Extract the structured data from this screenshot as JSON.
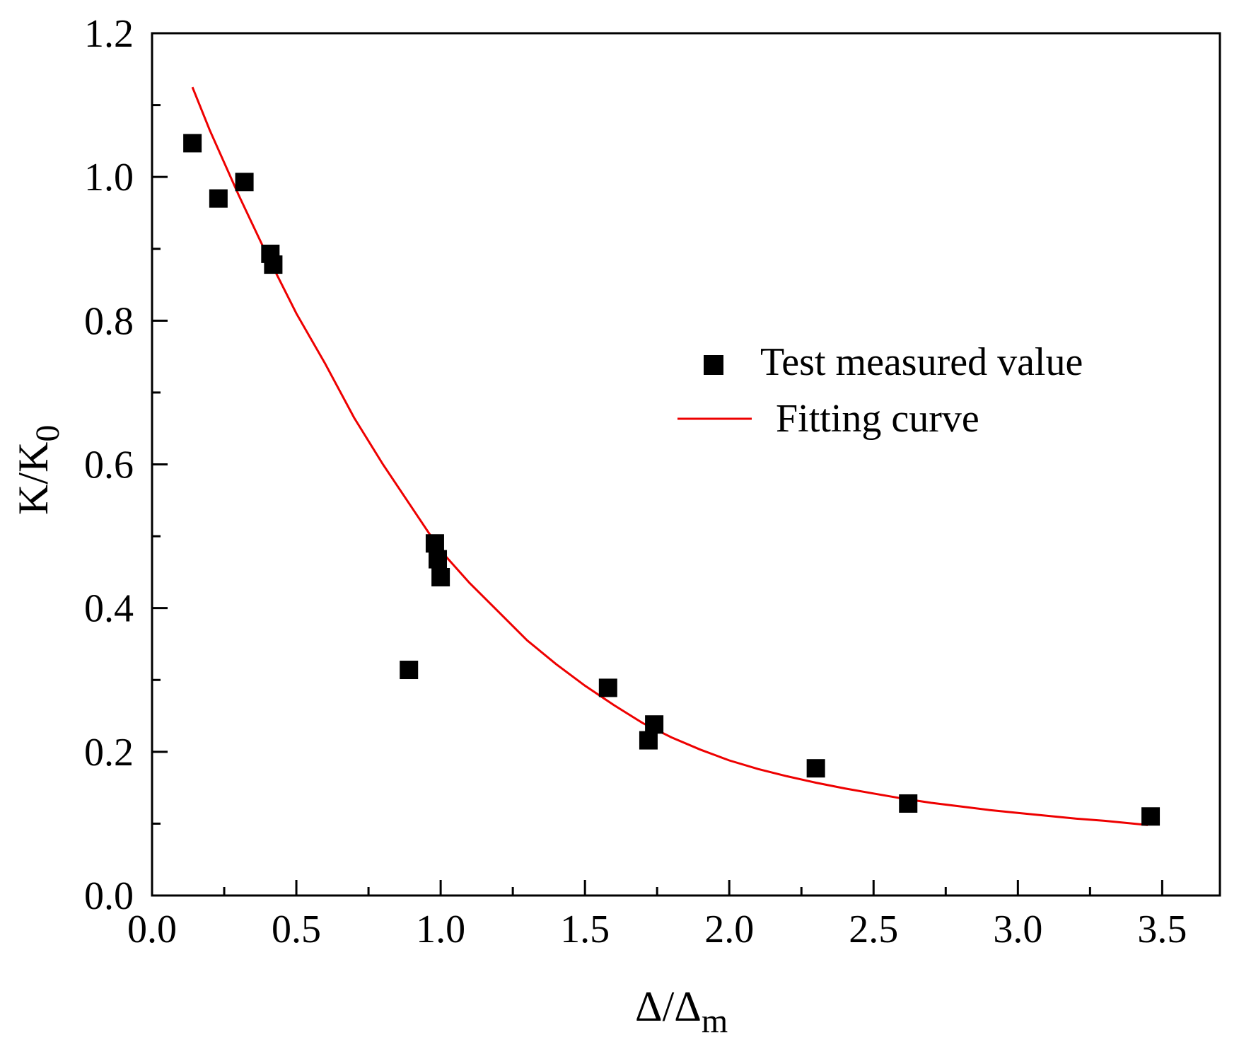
{
  "chart_data": {
    "type": "scatter",
    "title": "",
    "xlabel": {
      "main": "Δ/Δ",
      "sub": "m"
    },
    "ylabel": {
      "main": "K/K",
      "sub": "0"
    },
    "xlim": [
      0.0,
      3.7
    ],
    "ylim": [
      0.0,
      1.2
    ],
    "x_ticks": [
      0.0,
      0.5,
      1.0,
      1.5,
      2.0,
      2.5,
      3.0,
      3.5
    ],
    "x_tick_labels": [
      "0.0",
      "0.5",
      "1.0",
      "1.5",
      "2.0",
      "2.5",
      "3.0",
      "3.5"
    ],
    "y_ticks": [
      0.0,
      0.2,
      0.4,
      0.6,
      0.8,
      1.0,
      1.2
    ],
    "y_tick_labels": [
      "0.0",
      "0.2",
      "0.4",
      "0.6",
      "0.8",
      "1.0",
      "1.2"
    ],
    "x_minor_step": 0.25,
    "y_minor_step": 0.1,
    "legend_position": "right-middle",
    "series": [
      {
        "name": "Test measured value",
        "kind": "scatter",
        "marker": "square",
        "color": "#000000",
        "points": [
          [
            0.14,
            1.047
          ],
          [
            0.23,
            0.97
          ],
          [
            0.32,
            0.993
          ],
          [
            0.41,
            0.893
          ],
          [
            0.42,
            0.878
          ],
          [
            0.89,
            0.314
          ],
          [
            0.98,
            0.49
          ],
          [
            0.99,
            0.468
          ],
          [
            1.0,
            0.443
          ],
          [
            1.58,
            0.289
          ],
          [
            1.72,
            0.216
          ],
          [
            1.74,
            0.238
          ],
          [
            2.3,
            0.177
          ],
          [
            2.62,
            0.128
          ],
          [
            3.46,
            0.11
          ]
        ]
      },
      {
        "name": "Fitting curve",
        "kind": "line",
        "color": "#ee0000",
        "points": [
          [
            0.14,
            1.125
          ],
          [
            0.2,
            1.065
          ],
          [
            0.3,
            0.975
          ],
          [
            0.4,
            0.89
          ],
          [
            0.5,
            0.81
          ],
          [
            0.6,
            0.74
          ],
          [
            0.7,
            0.665
          ],
          [
            0.8,
            0.6
          ],
          [
            0.9,
            0.54
          ],
          [
            1.0,
            0.48
          ],
          [
            1.1,
            0.435
          ],
          [
            1.2,
            0.395
          ],
          [
            1.3,
            0.355
          ],
          [
            1.4,
            0.322
          ],
          [
            1.5,
            0.292
          ],
          [
            1.6,
            0.265
          ],
          [
            1.7,
            0.24
          ],
          [
            1.8,
            0.22
          ],
          [
            1.9,
            0.203
          ],
          [
            2.0,
            0.188
          ],
          [
            2.1,
            0.176
          ],
          [
            2.2,
            0.166
          ],
          [
            2.3,
            0.157
          ],
          [
            2.4,
            0.149
          ],
          [
            2.5,
            0.142
          ],
          [
            2.6,
            0.135
          ],
          [
            2.7,
            0.129
          ],
          [
            2.8,
            0.124
          ],
          [
            2.9,
            0.119
          ],
          [
            3.0,
            0.115
          ],
          [
            3.1,
            0.111
          ],
          [
            3.2,
            0.107
          ],
          [
            3.3,
            0.104
          ],
          [
            3.4,
            0.1
          ],
          [
            3.45,
            0.098
          ]
        ]
      }
    ]
  }
}
